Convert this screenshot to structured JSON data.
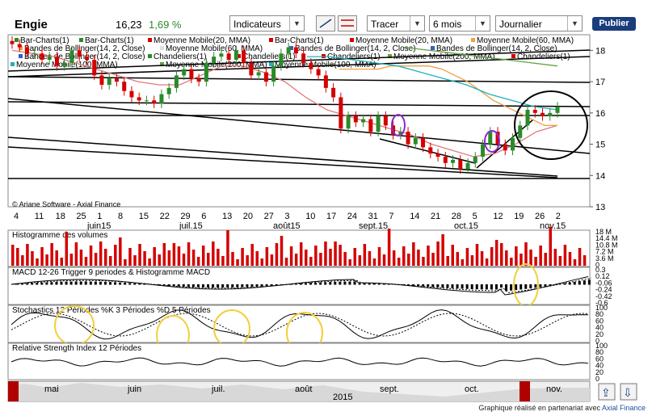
{
  "toolbar": {
    "symbol": "Engie",
    "price": "16,23",
    "change": "1,69 %",
    "indicators_label": "Indicateurs",
    "draw_label": "Tracer",
    "period_value": "6 mois",
    "interval_value": "Journalier",
    "publish_label": "Publier"
  },
  "chart_data": {
    "type": "line",
    "title": "Engie",
    "x_day_labels": [
      "4",
      "11",
      "18",
      "25",
      "1",
      "8",
      "15",
      "22",
      "29",
      "6",
      "13",
      "20",
      "27",
      "3",
      "10",
      "17",
      "24",
      "31",
      "7",
      "14",
      "21",
      "28",
      "5",
      "12",
      "19",
      "26",
      "2"
    ],
    "x_month_labels": [
      "juin15",
      "juil.15",
      "août15",
      "sept.15",
      "oct.15",
      "nov.15"
    ],
    "price_axis": {
      "ylim": [
        13,
        18.5
      ],
      "ticks": [
        13,
        14,
        15,
        16,
        17,
        18
      ]
    },
    "legend_entries": [
      "Bar-Charts(1)",
      "Bar-Charts(1)",
      "Moyenne Mobile(20, MMA)",
      "Bar-Charts(1)",
      "Moyenne Mobile(20, MMA)",
      "Moyenne Mobile(60, MMA)",
      "Bandes de Bollinger(14, 2, Close)",
      "Moyenne Mobile(60, MMA)",
      "Bandes de Bollinger(14, 2, Close)",
      "Bandes de Bollinger(14, 2, Close)",
      "Bandes de Bollinger(14, 2, Close)",
      "Chandeliers(1)",
      "Chandeliers(1)",
      "Chandeliers(1)",
      "Moyenne Mobile(200, MMA)",
      "Chandeliers(1)",
      "Moyenne Mobile(100, MMA)",
      "Moyenne Mobile(200, MMA)",
      "Moyenne Mobile(100, MMA)"
    ],
    "copyright": "© Ariane Software - Axial Finance",
    "series": [
      {
        "name": "Chandeliers(1)",
        "values": [
          18.2,
          18.1,
          17.9,
          17.9,
          17.7,
          17.8,
          17.5,
          17.6,
          18.0,
          17.8,
          17.7,
          17.2,
          16.9,
          17.1,
          17.0,
          16.7,
          16.5,
          16.4,
          16.4,
          16.3,
          16.6,
          16.8,
          17.2,
          17.4,
          17.1,
          17.0,
          17.6,
          17.8,
          17.9,
          17.7,
          18.0,
          17.6,
          17.2,
          17.3,
          17.0,
          17.5,
          17.9,
          18.1,
          17.9,
          17.6,
          17.4,
          17.2,
          16.8,
          16.5,
          15.5,
          15.9,
          15.7,
          15.8,
          15.4,
          15.9,
          15.6,
          15.3,
          15.4,
          15.0,
          15.2,
          14.9,
          14.7,
          14.6,
          14.4,
          14.5,
          14.2,
          14.4,
          14.6,
          15.0,
          15.4,
          15.0,
          14.8,
          15.2,
          15.6,
          16.1,
          16.0,
          15.9,
          16.0,
          16.2
        ]
      },
      {
        "name": "Moyenne Mobile(20, MMA)",
        "values": [
          18.0,
          17.9,
          17.8,
          17.6,
          17.4,
          17.2,
          17.0,
          16.9,
          16.9,
          17.2,
          17.5,
          17.5,
          17.3,
          17.0,
          16.5,
          16.1,
          15.9,
          15.7,
          15.5,
          15.3,
          15.0,
          14.8,
          14.6,
          14.7,
          15.0,
          15.4,
          15.6
        ]
      },
      {
        "name": "Moyenne Mobile(60, MMA)",
        "values": [
          17.4,
          17.4,
          17.4,
          17.4,
          17.5,
          17.5,
          17.5,
          17.5,
          17.4,
          17.2,
          17.0,
          16.7,
          16.4,
          16.2,
          16.0,
          15.8,
          15.6,
          15.6
        ]
      },
      {
        "name": "Moyenne Mobile(100, MMA)",
        "values": [
          17.8,
          17.8,
          17.7,
          17.6,
          17.5,
          17.3,
          17.1,
          16.9,
          16.6,
          16.4,
          16.2,
          16.1
        ]
      },
      {
        "name": "Moyenne Mobile(200, MMA)",
        "values": [
          18.1,
          18.0,
          17.9,
          17.8,
          17.7,
          17.6,
          17.5
        ]
      }
    ],
    "panels": [
      {
        "name": "Histogramme des volumes",
        "ticks": [
          "18 M",
          "14.4 M",
          "10.8 M",
          "7.2 M",
          "3.6 M",
          "0"
        ]
      },
      {
        "name": "MACD 12-26   Trigger 9 periodes & Histogramme MACD",
        "ticks": [
          "0.3",
          "0.12",
          "-0.06",
          "-0.24",
          "-0.42",
          "-0.6"
        ]
      },
      {
        "name": "Stochastics 12 Périodes   %K 3 Périodes   %D 5 Périodes",
        "ticks": [
          "100",
          "80",
          "60",
          "40",
          "20",
          "0"
        ]
      },
      {
        "name": "Relative Strength Index 12 Périodes",
        "ticks": [
          "100",
          "80",
          "60",
          "40",
          "20",
          "0"
        ]
      }
    ],
    "navigator": {
      "months": [
        "mai",
        "juin",
        "juil.",
        "août",
        "sept.",
        "oct.",
        "nov."
      ],
      "year": "2015"
    },
    "colors": {
      "up": "#2a8a2a",
      "down": "#d40000",
      "ma20": "#e07a7a",
      "ma60": "#f0a040",
      "ma100": "#20b0c0",
      "ma200": "#60a040",
      "annotation": "#f2cf3a",
      "annotation2": "#8a2bd0",
      "volume": "#d40000",
      "navigator": "#b00000"
    }
  },
  "footer": {
    "text": "Graphique réalisé en partenariat avec",
    "brand": "Axial Finance"
  }
}
